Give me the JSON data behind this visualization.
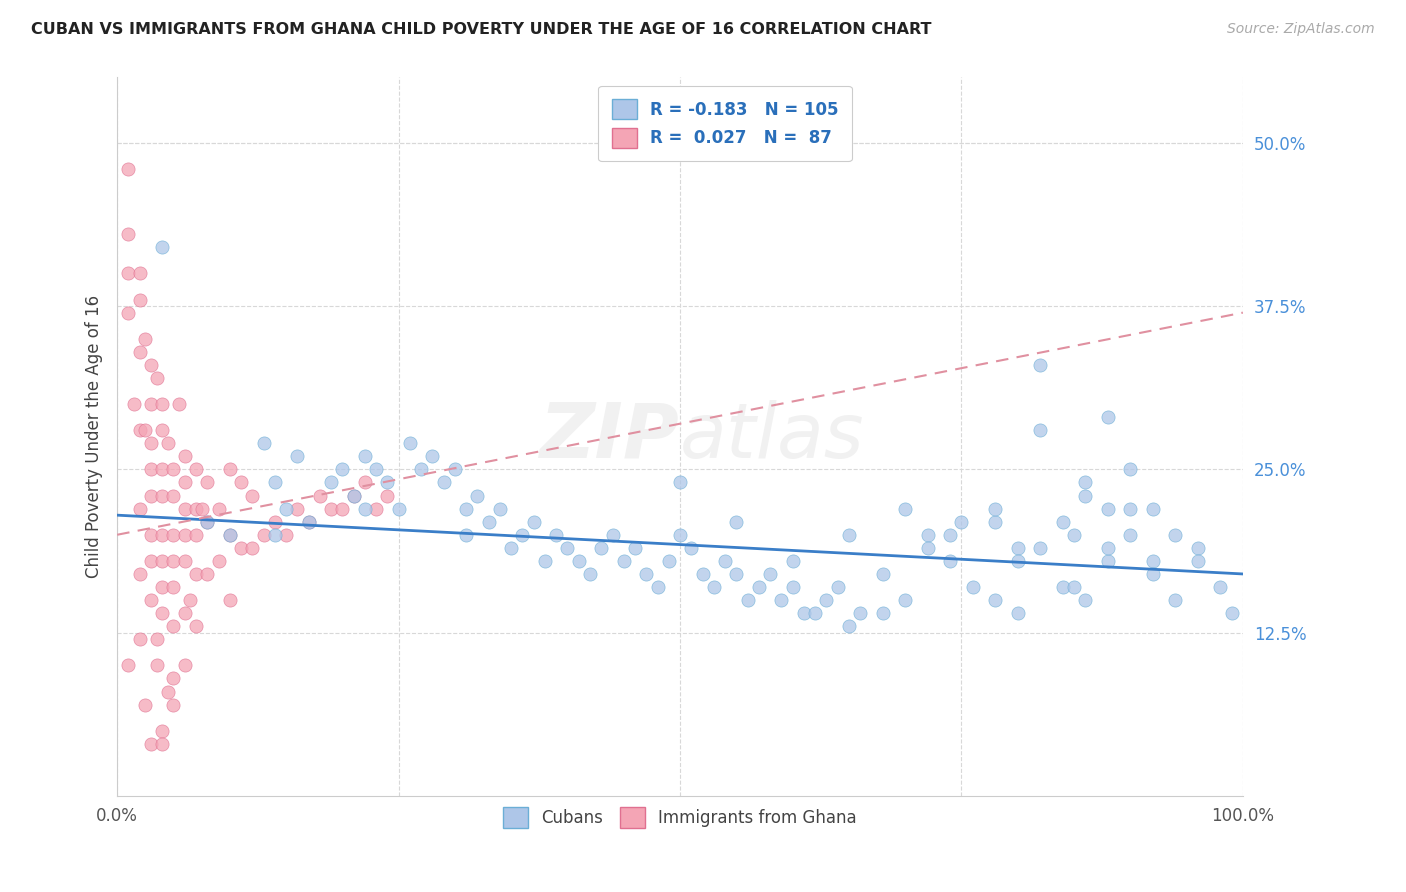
{
  "title": "CUBAN VS IMMIGRANTS FROM GHANA CHILD POVERTY UNDER THE AGE OF 16 CORRELATION CHART",
  "source": "Source: ZipAtlas.com",
  "ylabel": "Child Poverty Under the Age of 16",
  "xlim": [
    0.0,
    1.0
  ],
  "ylim": [
    0.0,
    0.55
  ],
  "xtick_labels": [
    "0.0%",
    "",
    "",
    "",
    "100.0%"
  ],
  "ytick_labels": [
    "12.5%",
    "25.0%",
    "37.5%",
    "50.0%"
  ],
  "ytick_values": [
    0.125,
    0.25,
    0.375,
    0.5
  ],
  "bg_color": "#ffffff",
  "grid_color": "#d8d8d8",
  "cuban_color": "#aec6e8",
  "ghana_color": "#f4a5b5",
  "cuban_edge_color": "#6baed6",
  "ghana_edge_color": "#e07090",
  "cuban_line_color": "#3a7ec8",
  "ghana_line_color": "#e090a0",
  "legend_R_cuban": "-0.183",
  "legend_N_cuban": "105",
  "legend_R_ghana": "0.027",
  "legend_N_ghana": "87",
  "watermark": "ZIPatlas",
  "cuban_line_x0": 0.0,
  "cuban_line_y0": 0.215,
  "cuban_line_x1": 1.0,
  "cuban_line_y1": 0.17,
  "ghana_line_x0": 0.0,
  "ghana_line_y0": 0.2,
  "ghana_line_x1": 1.0,
  "ghana_line_y1": 0.37,
  "cuban_scatter_x": [
    0.04,
    0.08,
    0.1,
    0.13,
    0.14,
    0.14,
    0.15,
    0.16,
    0.17,
    0.19,
    0.2,
    0.21,
    0.22,
    0.22,
    0.23,
    0.24,
    0.25,
    0.26,
    0.27,
    0.28,
    0.29,
    0.3,
    0.31,
    0.31,
    0.32,
    0.33,
    0.34,
    0.35,
    0.36,
    0.37,
    0.38,
    0.39,
    0.4,
    0.41,
    0.42,
    0.43,
    0.44,
    0.45,
    0.46,
    0.47,
    0.48,
    0.49,
    0.5,
    0.51,
    0.52,
    0.53,
    0.54,
    0.55,
    0.56,
    0.57,
    0.58,
    0.59,
    0.6,
    0.61,
    0.62,
    0.63,
    0.64,
    0.65,
    0.66,
    0.68,
    0.7,
    0.72,
    0.74,
    0.76,
    0.78,
    0.8,
    0.82,
    0.84,
    0.86,
    0.88,
    0.9,
    0.92,
    0.5,
    0.55,
    0.6,
    0.65,
    0.7,
    0.75,
    0.8,
    0.85,
    0.88,
    0.9,
    0.82,
    0.86,
    0.78,
    0.92,
    0.94,
    0.96,
    0.82,
    0.88,
    0.9,
    0.86,
    0.84,
    0.78,
    0.72,
    0.68,
    0.74,
    0.8,
    0.85,
    0.88,
    0.92,
    0.94,
    0.96,
    0.98,
    0.99
  ],
  "cuban_scatter_y": [
    0.42,
    0.21,
    0.2,
    0.27,
    0.2,
    0.24,
    0.22,
    0.26,
    0.21,
    0.24,
    0.25,
    0.23,
    0.26,
    0.22,
    0.25,
    0.24,
    0.22,
    0.27,
    0.25,
    0.26,
    0.24,
    0.25,
    0.22,
    0.2,
    0.23,
    0.21,
    0.22,
    0.19,
    0.2,
    0.21,
    0.18,
    0.2,
    0.19,
    0.18,
    0.17,
    0.19,
    0.2,
    0.18,
    0.19,
    0.17,
    0.16,
    0.18,
    0.2,
    0.19,
    0.17,
    0.16,
    0.18,
    0.17,
    0.15,
    0.16,
    0.17,
    0.15,
    0.16,
    0.14,
    0.14,
    0.15,
    0.16,
    0.13,
    0.14,
    0.14,
    0.15,
    0.2,
    0.18,
    0.16,
    0.15,
    0.14,
    0.19,
    0.16,
    0.15,
    0.18,
    0.22,
    0.18,
    0.24,
    0.21,
    0.18,
    0.2,
    0.22,
    0.21,
    0.19,
    0.2,
    0.29,
    0.25,
    0.28,
    0.23,
    0.21,
    0.22,
    0.2,
    0.19,
    0.33,
    0.22,
    0.2,
    0.24,
    0.21,
    0.22,
    0.19,
    0.17,
    0.2,
    0.18,
    0.16,
    0.19,
    0.17,
    0.15,
    0.18,
    0.16,
    0.14
  ],
  "ghana_scatter_x": [
    0.01,
    0.01,
    0.01,
    0.01,
    0.01,
    0.015,
    0.02,
    0.02,
    0.02,
    0.02,
    0.02,
    0.02,
    0.02,
    0.025,
    0.025,
    0.03,
    0.03,
    0.03,
    0.03,
    0.03,
    0.03,
    0.03,
    0.03,
    0.035,
    0.035,
    0.04,
    0.04,
    0.04,
    0.04,
    0.04,
    0.04,
    0.04,
    0.04,
    0.04,
    0.045,
    0.045,
    0.05,
    0.05,
    0.05,
    0.05,
    0.05,
    0.05,
    0.05,
    0.055,
    0.06,
    0.06,
    0.06,
    0.06,
    0.06,
    0.06,
    0.065,
    0.07,
    0.07,
    0.07,
    0.07,
    0.075,
    0.08,
    0.08,
    0.08,
    0.09,
    0.09,
    0.1,
    0.1,
    0.1,
    0.11,
    0.11,
    0.12,
    0.12,
    0.13,
    0.14,
    0.15,
    0.16,
    0.17,
    0.18,
    0.19,
    0.2,
    0.21,
    0.22,
    0.23,
    0.24,
    0.025,
    0.03,
    0.035,
    0.04,
    0.05,
    0.06,
    0.07
  ],
  "ghana_scatter_y": [
    0.48,
    0.43,
    0.4,
    0.37,
    0.1,
    0.3,
    0.4,
    0.38,
    0.34,
    0.28,
    0.22,
    0.17,
    0.12,
    0.35,
    0.28,
    0.33,
    0.3,
    0.27,
    0.25,
    0.23,
    0.2,
    0.18,
    0.15,
    0.32,
    0.1,
    0.3,
    0.28,
    0.25,
    0.23,
    0.2,
    0.18,
    0.16,
    0.14,
    0.05,
    0.27,
    0.08,
    0.25,
    0.23,
    0.2,
    0.18,
    0.16,
    0.13,
    0.09,
    0.3,
    0.26,
    0.24,
    0.22,
    0.2,
    0.18,
    0.14,
    0.15,
    0.25,
    0.22,
    0.2,
    0.17,
    0.22,
    0.24,
    0.21,
    0.17,
    0.22,
    0.18,
    0.25,
    0.2,
    0.15,
    0.24,
    0.19,
    0.23,
    0.19,
    0.2,
    0.21,
    0.2,
    0.22,
    0.21,
    0.23,
    0.22,
    0.22,
    0.23,
    0.24,
    0.22,
    0.23,
    0.07,
    0.04,
    0.12,
    0.04,
    0.07,
    0.1,
    0.13
  ]
}
